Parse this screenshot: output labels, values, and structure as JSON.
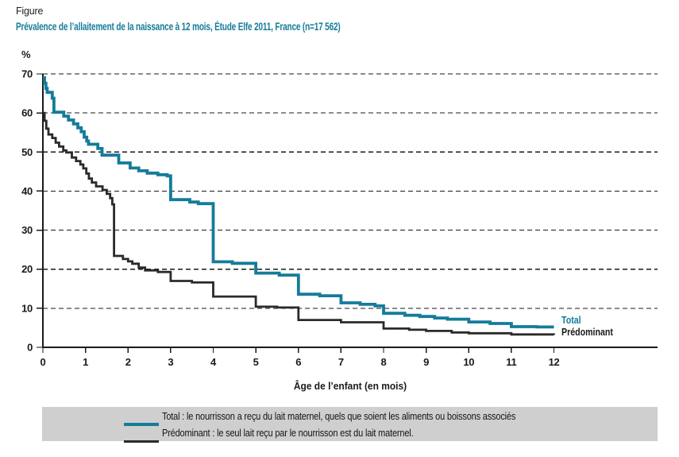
{
  "figure_label": "Figure",
  "colors": {
    "teal": "#147c9a",
    "series_black": "#2a2a2a",
    "legend_bg": "#cfcfcf",
    "grid": "#1a1a1a",
    "text": "#1a1a1a"
  },
  "chart_data": {
    "type": "line",
    "line_style": "step-after",
    "title": "Prévalence de l’allaitement de la naissance à 12 mois, Étude Elfe 2011, France (n=17 562)",
    "xlabel": "Âge de l’enfant (en mois)",
    "ylabel": "%",
    "xlim": [
      0,
      12
    ],
    "ylim": [
      0,
      70
    ],
    "x_ticks": [
      0,
      1,
      2,
      3,
      4,
      5,
      6,
      7,
      8,
      9,
      10,
      11,
      12
    ],
    "y_ticks": [
      0,
      10,
      20,
      30,
      40,
      50,
      60,
      70
    ],
    "grid": "horizontal-dashed",
    "legend_position": "bottom-box",
    "series": [
      {
        "name": "Total",
        "end_label": "Total",
        "color": "#147c9a",
        "legend_text": "Total : le nourrisson a reçu du lait maternel, quels que soient les aliments ou boissons associés",
        "points": [
          [
            0,
            69
          ],
          [
            0.04,
            67.6
          ],
          [
            0.07,
            66.3
          ],
          [
            0.1,
            65.3
          ],
          [
            0.22,
            63.8
          ],
          [
            0.26,
            60.2
          ],
          [
            0.49,
            59.2
          ],
          [
            0.6,
            58.2
          ],
          [
            0.72,
            57.2
          ],
          [
            0.82,
            56.2
          ],
          [
            0.9,
            55.2
          ],
          [
            0.97,
            53.8
          ],
          [
            1.03,
            52.8
          ],
          [
            1.07,
            52.0
          ],
          [
            1.29,
            50.9
          ],
          [
            1.39,
            49.2
          ],
          [
            1.78,
            47.2
          ],
          [
            2.05,
            45.9
          ],
          [
            2.25,
            45.2
          ],
          [
            2.45,
            44.6
          ],
          [
            2.7,
            44.2
          ],
          [
            2.92,
            43.9
          ],
          [
            3,
            37.8
          ],
          [
            3.45,
            37.2
          ],
          [
            3.65,
            36.8
          ],
          [
            4,
            21.9
          ],
          [
            4.45,
            21.5
          ],
          [
            5,
            19
          ],
          [
            5.55,
            18.5
          ],
          [
            6,
            13.6
          ],
          [
            6.5,
            13.2
          ],
          [
            7,
            11.4
          ],
          [
            7.45,
            11
          ],
          [
            7.8,
            10.6
          ],
          [
            8,
            8.7
          ],
          [
            8.5,
            8.2
          ],
          [
            8.85,
            7.9
          ],
          [
            9.2,
            7.5
          ],
          [
            9.5,
            7.2
          ],
          [
            10,
            6.5
          ],
          [
            10.5,
            6.1
          ],
          [
            11,
            5.3
          ],
          [
            11.6,
            5.2
          ],
          [
            12,
            5.2
          ]
        ]
      },
      {
        "name": "Prédominant",
        "end_label": "Prédominant",
        "color": "#2a2a2a",
        "legend_text": "Prédominant : le seul lait reçu par le nourrisson est du lait maternel.",
        "points": [
          [
            0,
            60
          ],
          [
            0.04,
            58
          ],
          [
            0.08,
            56
          ],
          [
            0.13,
            54.5
          ],
          [
            0.22,
            53.6
          ],
          [
            0.3,
            52.4
          ],
          [
            0.38,
            51.4
          ],
          [
            0.48,
            50.4
          ],
          [
            0.55,
            49.9
          ],
          [
            0.68,
            48.6
          ],
          [
            0.78,
            47.7
          ],
          [
            0.88,
            46.8
          ],
          [
            0.95,
            45.8
          ],
          [
            1.02,
            44.5
          ],
          [
            1.08,
            43.2
          ],
          [
            1.15,
            42.2
          ],
          [
            1.25,
            41.2
          ],
          [
            1.4,
            40.3
          ],
          [
            1.5,
            39.3
          ],
          [
            1.58,
            38.2
          ],
          [
            1.63,
            36.6
          ],
          [
            1.67,
            23.4
          ],
          [
            1.88,
            22.6
          ],
          [
            2,
            22
          ],
          [
            2.1,
            21.4
          ],
          [
            2.25,
            20.4
          ],
          [
            2.4,
            19.7
          ],
          [
            2.7,
            19.3
          ],
          [
            3,
            17
          ],
          [
            3.5,
            16.6
          ],
          [
            4,
            13
          ],
          [
            5,
            10.4
          ],
          [
            5.5,
            10.2
          ],
          [
            6,
            7
          ],
          [
            7,
            6.4
          ],
          [
            8,
            4.8
          ],
          [
            8.6,
            4.5
          ],
          [
            9,
            4.2
          ],
          [
            9.6,
            3.8
          ],
          [
            10,
            3.6
          ],
          [
            11,
            3.3
          ],
          [
            12,
            3.2
          ]
        ]
      }
    ]
  }
}
